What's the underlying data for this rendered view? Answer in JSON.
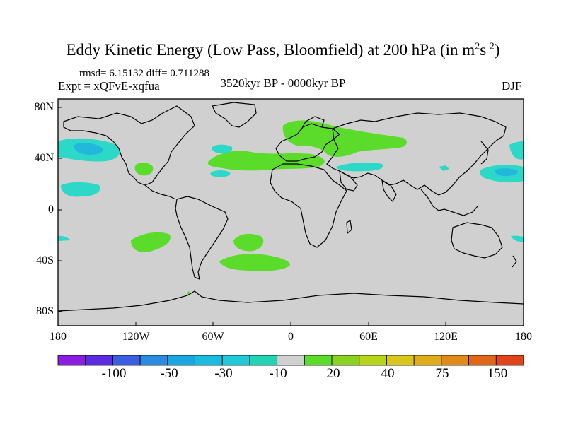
{
  "title_main": "Eddy Kinetic Energy (Low Pass, Bloomfield) at 200 hPa (in m",
  "title_sup1": "2",
  "title_mid": "s",
  "title_sup2": "-2",
  "title_end": ")",
  "stats": "rmsd= 6.15132 diff= 0.711288",
  "expt": "Expt = xQFvE-xqfua",
  "period": "3520kyr BP - 0000kyr BP",
  "season": "DJF",
  "y_labels": [
    "80N",
    "40N",
    "0",
    "40S",
    "80S"
  ],
  "x_labels": [
    "180",
    "120W",
    "60W",
    "0",
    "60E",
    "120E",
    "180"
  ],
  "colorbar": {
    "colors": [
      "#8a1de0",
      "#5b2be0",
      "#3c5ee0",
      "#2a8be0",
      "#1aa6e0",
      "#1bbbe0",
      "#20c9d8",
      "#22d3b6",
      "#d0d0d0",
      "#5bdc2a",
      "#8ad21f",
      "#b6d41a",
      "#d8c71a",
      "#e0ac1a",
      "#e08a1a",
      "#e0661a",
      "#e0441a"
    ],
    "labels": [
      "-100",
      "-50",
      "-30",
      "-10",
      "20",
      "40",
      "75",
      "150"
    ]
  },
  "colors": {
    "ocean": "#d0d0d0",
    "positive": "#5bdc2a",
    "negative": "#2cd8c8",
    "negative_core": "#22b8dc"
  }
}
